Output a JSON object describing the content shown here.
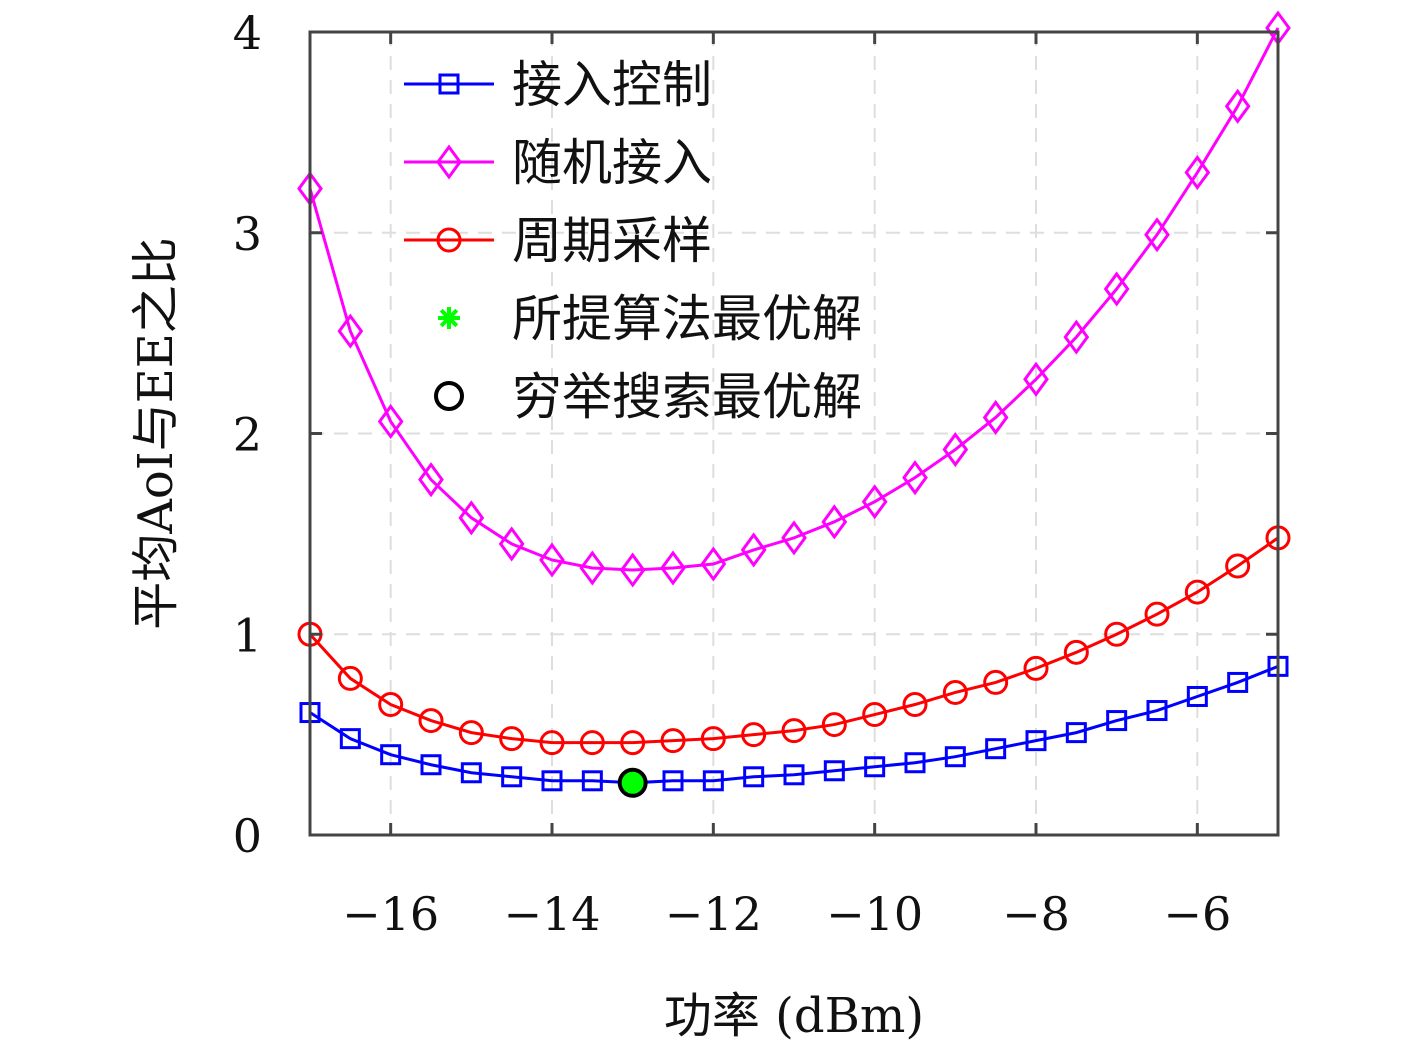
{
  "chart_data": {
    "type": "line",
    "title": "",
    "xlabel": "功率 (dBm)",
    "ylabel": "平均AoI与EE之比",
    "xlim": [
      -17,
      -5
    ],
    "ylim": [
      0,
      4
    ],
    "xticks": [
      -16,
      -14,
      -12,
      -10,
      -8,
      -6
    ],
    "xtick_labels": [
      "−16",
      "−14",
      "−12",
      "−10",
      "−8",
      "−6"
    ],
    "yticks": [
      0,
      1,
      2,
      3,
      4
    ],
    "ytick_labels": [
      "0",
      "1",
      "2",
      "3",
      "4"
    ],
    "grid": true,
    "legend_position": "top-left",
    "x": [
      -17,
      -16.5,
      -16,
      -15.5,
      -15,
      -14.5,
      -14,
      -13.5,
      -13,
      -12.5,
      -12,
      -11.5,
      -11,
      -10.5,
      -10,
      -9.5,
      -9,
      -8.5,
      -8,
      -7.5,
      -7,
      -6.5,
      -6,
      -5.5,
      -5
    ],
    "series": [
      {
        "name": "接入控制",
        "color": "#0000ff",
        "marker": "square",
        "values": [
          0.61,
          0.48,
          0.4,
          0.35,
          0.31,
          0.29,
          0.27,
          0.27,
          0.26,
          0.27,
          0.27,
          0.29,
          0.3,
          0.32,
          0.34,
          0.36,
          0.39,
          0.43,
          0.47,
          0.51,
          0.57,
          0.62,
          0.69,
          0.76,
          0.84
        ]
      },
      {
        "name": "随机接入",
        "color": "#ff00ff",
        "marker": "diamond",
        "values": [
          3.22,
          2.51,
          2.06,
          1.77,
          1.58,
          1.45,
          1.37,
          1.33,
          1.32,
          1.33,
          1.35,
          1.42,
          1.48,
          1.56,
          1.66,
          1.78,
          1.92,
          2.08,
          2.27,
          2.48,
          2.72,
          2.99,
          3.3,
          3.63,
          4.02
        ]
      },
      {
        "name": "周期采样",
        "color": "#ff0000",
        "marker": "circle",
        "values": [
          1.0,
          0.78,
          0.65,
          0.57,
          0.51,
          0.48,
          0.46,
          0.46,
          0.46,
          0.47,
          0.48,
          0.5,
          0.52,
          0.55,
          0.6,
          0.65,
          0.71,
          0.76,
          0.83,
          0.91,
          1.0,
          1.1,
          1.21,
          1.34,
          1.48
        ]
      }
    ],
    "points": [
      {
        "name": "所提算法最优解",
        "color": "#00ff00",
        "marker": "asterisk",
        "x": -13,
        "y": 0.26
      },
      {
        "name": "穷举搜索最优解",
        "color": "#000000",
        "marker": "circle-open",
        "x": -13,
        "y": 0.26
      }
    ]
  }
}
